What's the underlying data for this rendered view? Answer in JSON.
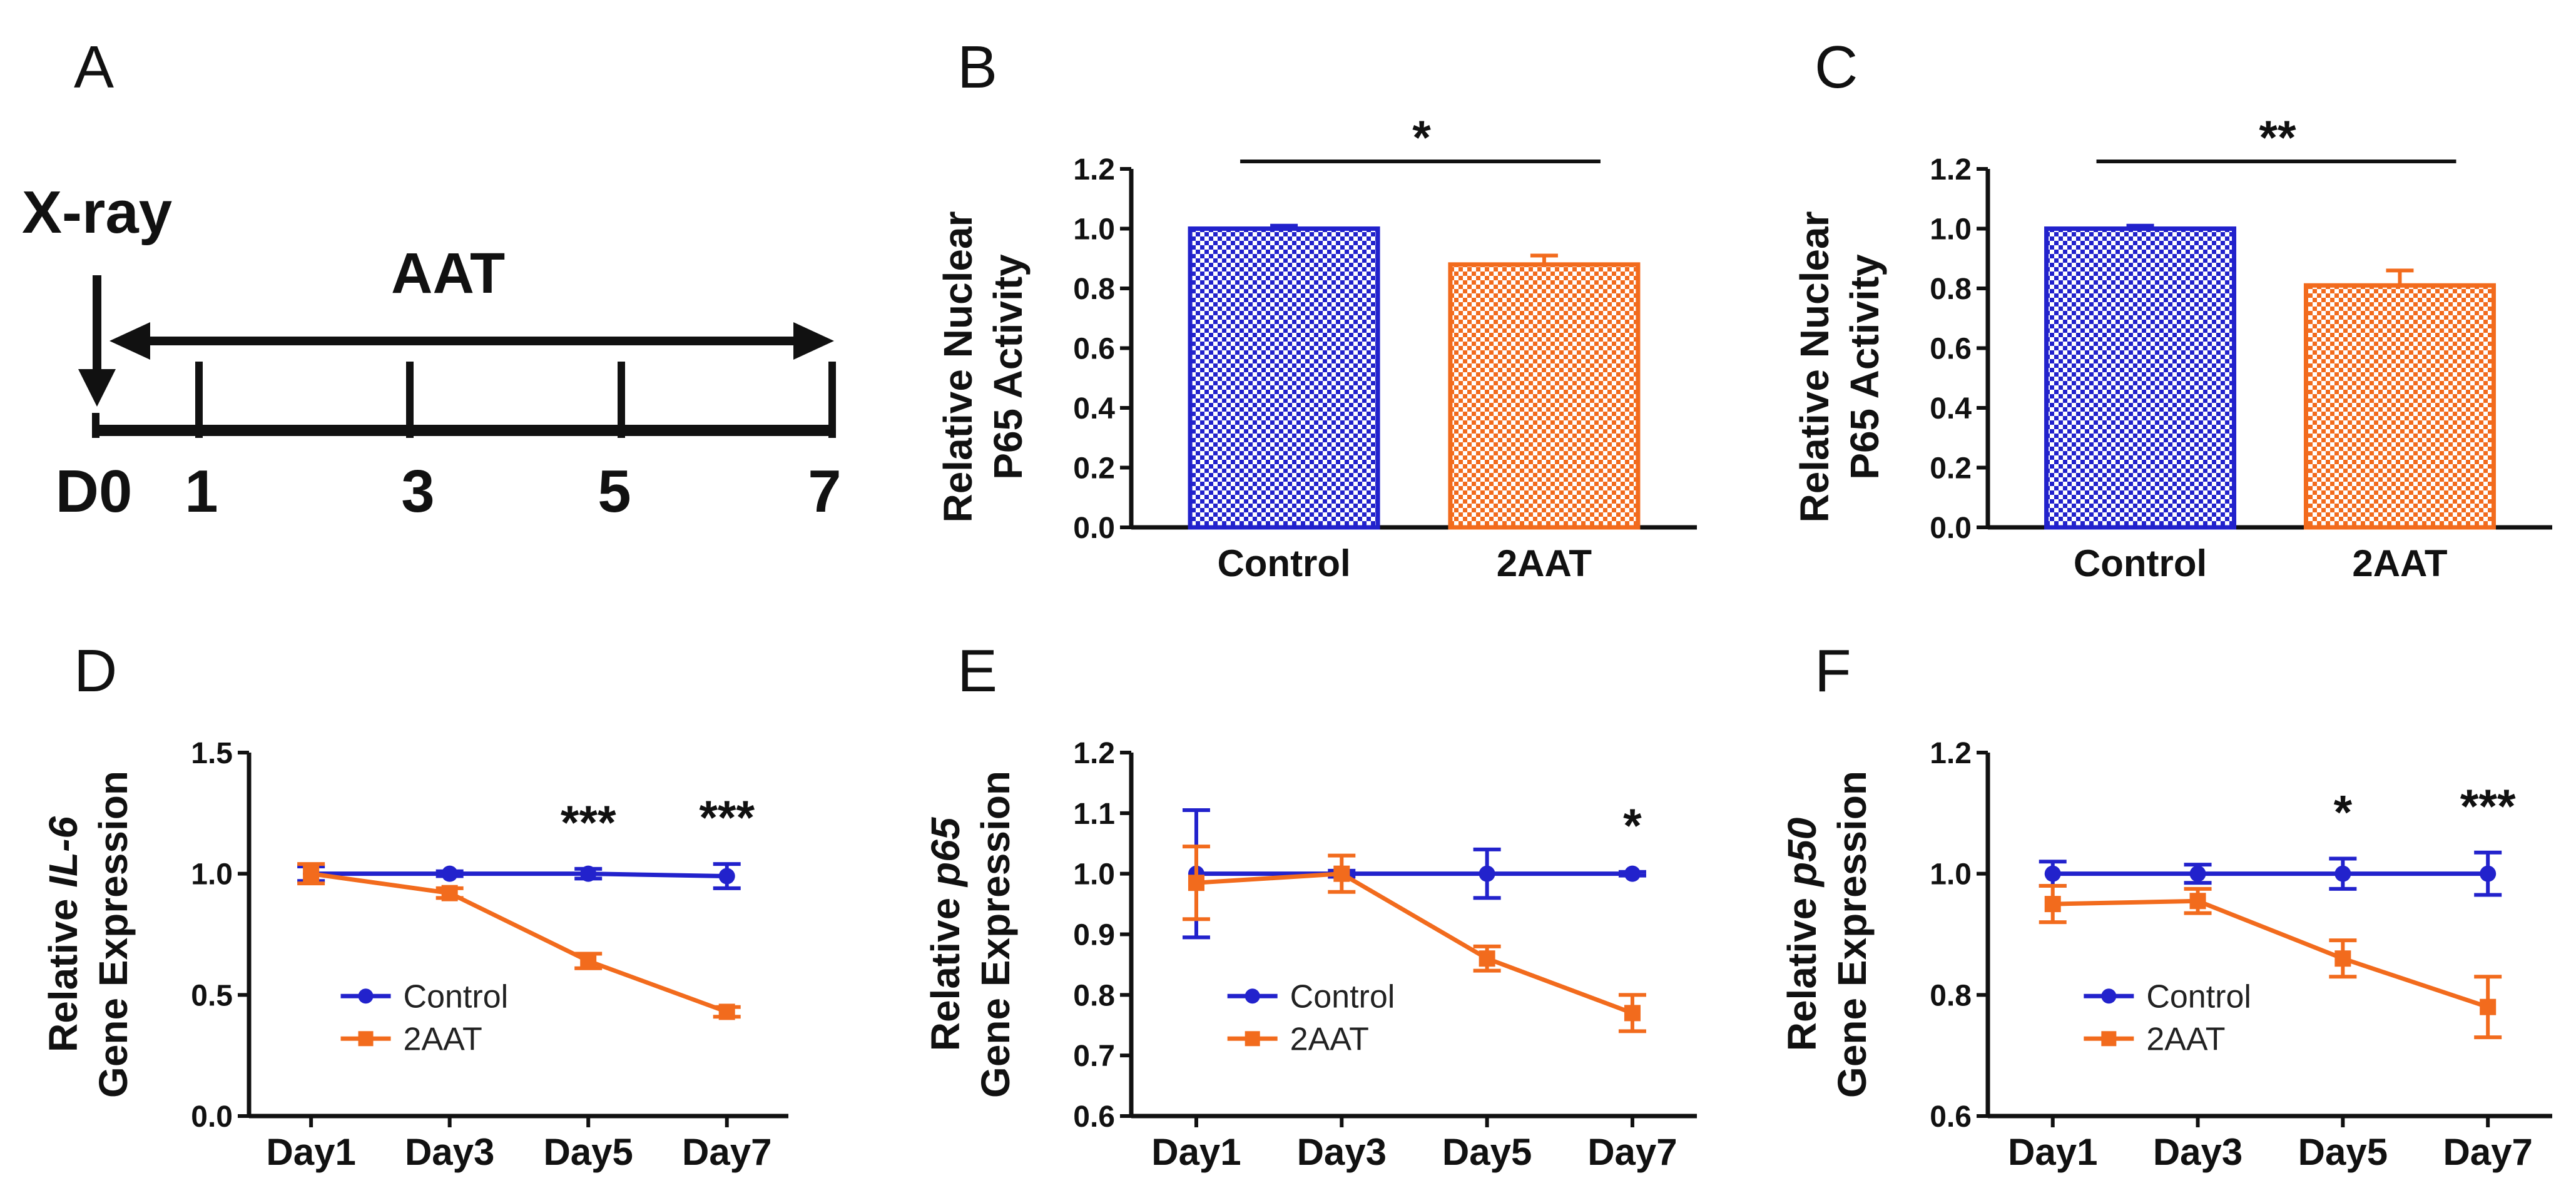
{
  "colors": {
    "control": "#2222cc",
    "aat": "#f26b1d",
    "ink": "#111111"
  },
  "timeline": {
    "panel_label": "A",
    "xray_label": "X-ray",
    "aat_label": "AAT",
    "day_labels": [
      "D0",
      "1",
      "3",
      "5",
      "7"
    ]
  },
  "chart_data": [
    {
      "panel": "B",
      "type": "bar",
      "categories": [
        "Control",
        "2AAT"
      ],
      "values": [
        1.0,
        0.88
      ],
      "errors": [
        0.01,
        0.03
      ],
      "ylabel": [
        "Relative Nuclear",
        "P65 Activity"
      ],
      "ylim": [
        0,
        1.2
      ],
      "yticks": [
        "0.0",
        "0.2",
        "0.4",
        "0.6",
        "0.8",
        "1.0",
        "1.2"
      ],
      "significance": "*"
    },
    {
      "panel": "C",
      "type": "bar",
      "categories": [
        "Control",
        "2AAT"
      ],
      "values": [
        1.0,
        0.81
      ],
      "errors": [
        0.01,
        0.05
      ],
      "ylabel": [
        "Relative Nuclear",
        "P65 Activity"
      ],
      "ylim": [
        0,
        1.2
      ],
      "yticks": [
        "0.0",
        "0.2",
        "0.4",
        "0.6",
        "0.8",
        "1.0",
        "1.2"
      ],
      "significance": "**"
    },
    {
      "panel": "D",
      "type": "line",
      "categories": [
        "Day1",
        "Day3",
        "Day5",
        "Day7"
      ],
      "series": [
        {
          "name": "Control",
          "values": [
            1.0,
            1.0,
            1.0,
            0.99
          ],
          "errors": [
            0.03,
            0.01,
            0.02,
            0.05
          ]
        },
        {
          "name": "2AAT",
          "values": [
            1.0,
            0.92,
            0.64,
            0.43
          ],
          "errors": [
            0.04,
            0.02,
            0.03,
            0.02
          ]
        }
      ],
      "ylabel_pre": "Relative ",
      "ylabel_gene": "IL-6",
      "ylabel2": "Gene Expression",
      "ylim": [
        0,
        1.5
      ],
      "yticks": [
        "0.0",
        "0.5",
        "1.0",
        "1.5"
      ],
      "annotations": [
        "",
        "",
        "***",
        "***"
      ]
    },
    {
      "panel": "E",
      "type": "line",
      "categories": [
        "Day1",
        "Day3",
        "Day5",
        "Day7"
      ],
      "series": [
        {
          "name": "Control",
          "values": [
            1.0,
            1.0,
            1.0,
            1.0
          ],
          "errors": [
            0.105,
            0.005,
            0.04,
            0.003
          ]
        },
        {
          "name": "2AAT",
          "values": [
            0.985,
            1.0,
            0.86,
            0.77
          ],
          "errors": [
            0.06,
            0.03,
            0.02,
            0.03
          ]
        }
      ],
      "ylabel_pre": "Relative ",
      "ylabel_gene": "p65",
      "ylabel2": "Gene Expression",
      "ylim": [
        0.6,
        1.2
      ],
      "yticks": [
        "0.6",
        "0.7",
        "0.8",
        "0.9",
        "1.0",
        "1.1",
        "1.2"
      ],
      "annotations": [
        "",
        "",
        "",
        "*"
      ]
    },
    {
      "panel": "F",
      "type": "line",
      "categories": [
        "Day1",
        "Day3",
        "Day5",
        "Day7"
      ],
      "series": [
        {
          "name": "Control",
          "values": [
            1.0,
            1.0,
            1.0,
            1.0
          ],
          "errors": [
            0.02,
            0.015,
            0.025,
            0.035
          ]
        },
        {
          "name": "2AAT",
          "values": [
            0.95,
            0.955,
            0.86,
            0.78
          ],
          "errors": [
            0.03,
            0.02,
            0.03,
            0.05
          ]
        }
      ],
      "ylabel_pre": "Relative ",
      "ylabel_gene": "p50",
      "ylabel2": "Gene Expression",
      "ylim": [
        0.6,
        1.2
      ],
      "yticks": [
        "0.6",
        "0.8",
        "1.0",
        "1.2"
      ],
      "annotations": [
        "",
        "",
        "*",
        "***"
      ]
    }
  ]
}
